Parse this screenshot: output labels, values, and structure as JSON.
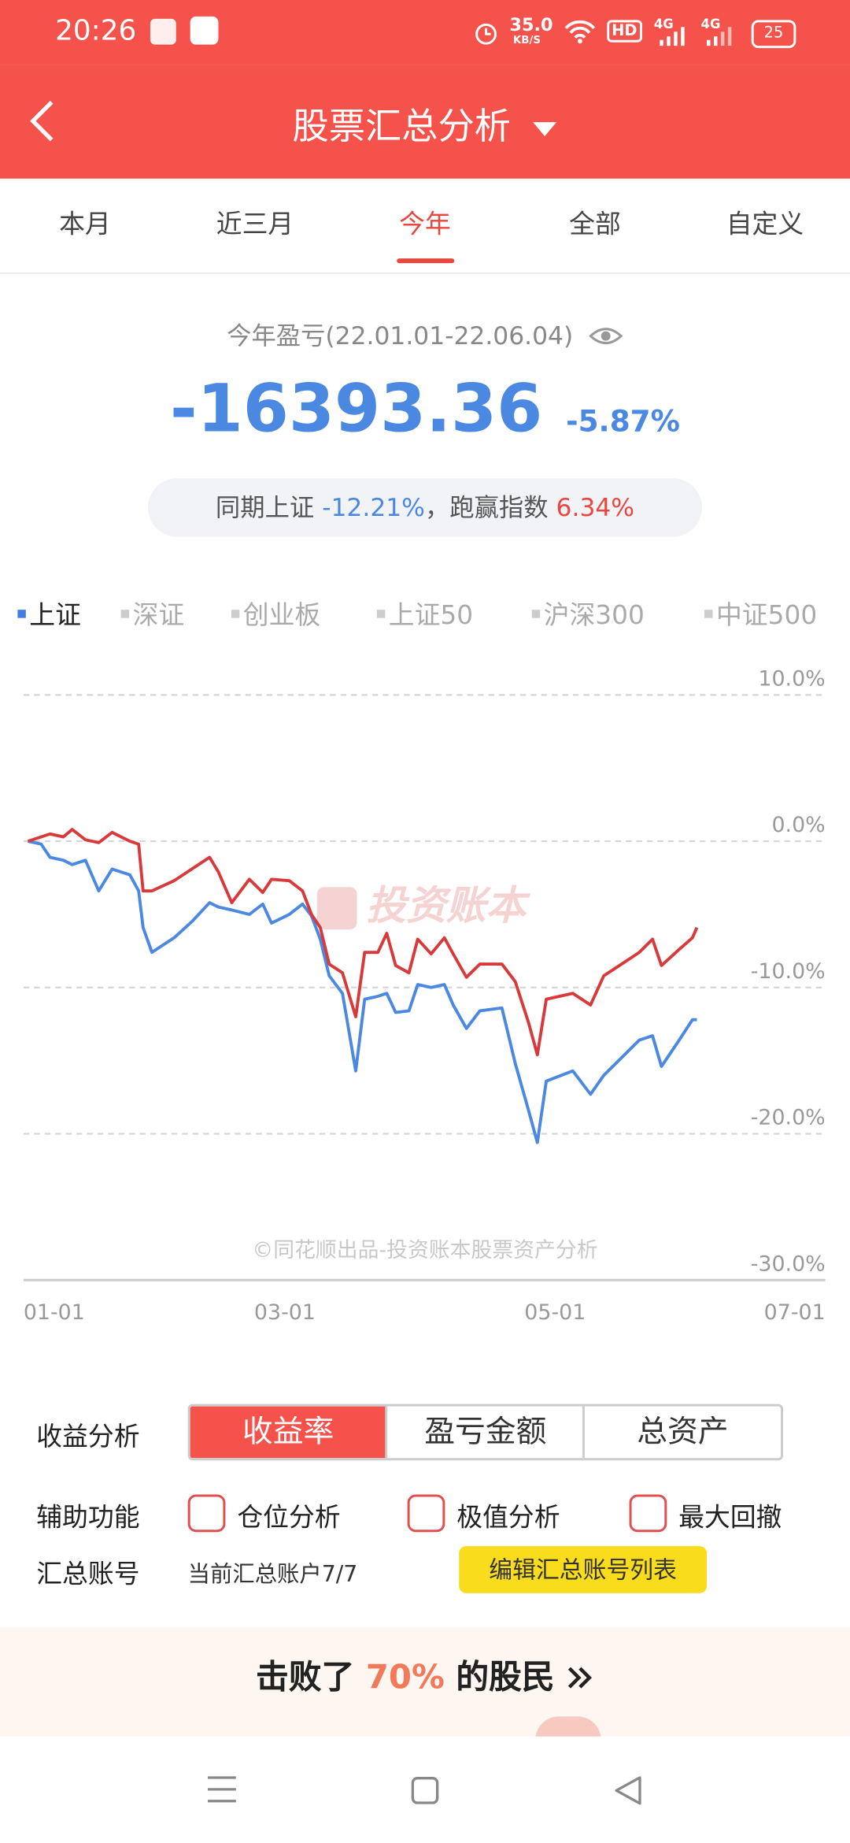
{
  "status_bar": {
    "time": "20:26",
    "network_speed": "35.0",
    "network_unit": "KB/S",
    "hd": "HD",
    "signal_labels": [
      "4G",
      "4G"
    ],
    "battery": "25"
  },
  "header": {
    "title": "股票汇总分析"
  },
  "period_tabs": {
    "items": [
      "本月",
      "近三月",
      "今年",
      "全部",
      "自定义"
    ],
    "active": 2
  },
  "summary": {
    "label": "今年盈亏(22.01.01-22.06.04)",
    "profit": "-16393.36",
    "return": "-5.87%",
    "compare_prefix": "同期上证",
    "index_return": "-12.21%",
    "compare_middle": "，跑赢指数",
    "excess_return": "6.34%"
  },
  "index_tabs": {
    "items": [
      "上证",
      "深证",
      "创业板",
      "上证50",
      "沪深300",
      "中证500"
    ],
    "active": 0
  },
  "chart_data": {
    "type": "line",
    "watermark": "投资账本",
    "footnote": "©同花顺出品-投资账本股票资产分析",
    "x": [
      "01-02",
      "01-05",
      "01-07",
      "01-10",
      "01-12",
      "01-15",
      "01-18",
      "01-21",
      "01-25",
      "01-27",
      "01-28",
      "01-30",
      "02-04",
      "02-08",
      "02-12",
      "02-14",
      "02-17",
      "02-21",
      "02-24",
      "02-26",
      "03-02",
      "03-05",
      "03-07",
      "03-09",
      "03-11",
      "03-14",
      "03-17",
      "03-19",
      "03-22",
      "03-24",
      "03-26",
      "03-29",
      "03-31",
      "04-03",
      "04-06",
      "04-08",
      "04-11",
      "04-14",
      "04-19",
      "04-22",
      "04-25",
      "04-27",
      "04-29",
      "05-05",
      "05-09",
      "05-12",
      "05-16",
      "05-20",
      "05-23",
      "05-25",
      "05-29",
      "06-01",
      "06-02"
    ],
    "series": [
      {
        "color": "#4a88e2",
        "values": [
          0.0,
          -0.2,
          -1.1,
          -1.3,
          -1.6,
          -1.3,
          -3.4,
          -1.9,
          -2.3,
          -3.4,
          -5.9,
          -7.6,
          -6.6,
          -5.5,
          -4.2,
          -4.5,
          -4.7,
          -5.0,
          -4.3,
          -5.6,
          -5.0,
          -4.3,
          -5.1,
          -6.7,
          -9.2,
          -10.4,
          -15.7,
          -10.8,
          -10.6,
          -10.4,
          -11.7,
          -11.6,
          -9.8,
          -10.0,
          -9.8,
          -11.2,
          -12.8,
          -11.6,
          -11.4,
          -15.2,
          -18.4,
          -20.6,
          -16.4,
          -15.7,
          -17.3,
          -16.0,
          -14.8,
          -13.6,
          -13.3,
          -15.4,
          -13.6,
          -12.2,
          -12.2
        ]
      },
      {
        "color": "#d8393a",
        "values": [
          0.0,
          0.3,
          0.5,
          0.3,
          0.8,
          0.1,
          -0.1,
          0.6,
          0.0,
          -0.2,
          -3.4,
          -3.4,
          -2.7,
          -1.9,
          -1.1,
          -2.1,
          -4.2,
          -2.6,
          -3.5,
          -2.6,
          -2.7,
          -3.4,
          -5.0,
          -5.9,
          -8.4,
          -9.0,
          -12.0,
          -7.6,
          -7.6,
          -6.3,
          -8.5,
          -9.0,
          -6.7,
          -7.7,
          -6.6,
          -7.7,
          -9.3,
          -8.4,
          -8.4,
          -9.6,
          -12.4,
          -14.6,
          -10.8,
          -10.4,
          -11.2,
          -9.2,
          -8.4,
          -7.6,
          -6.7,
          -8.5,
          -7.4,
          -6.6,
          -5.9
        ]
      }
    ],
    "xlim": [
      "01-01",
      "07-01"
    ],
    "xticks": [
      "01-01",
      "03-01",
      "05-01",
      "07-01"
    ],
    "ylim": [
      -30,
      10
    ],
    "yticks": [
      {
        "value": 10,
        "label": "10.0%"
      },
      {
        "value": 0,
        "label": "0.0%"
      },
      {
        "value": -10,
        "label": "-10.0%"
      },
      {
        "value": -20,
        "label": "-20.0%"
      },
      {
        "value": -30,
        "label": "-30.0%"
      }
    ],
    "grid": true
  },
  "controls": {
    "analysis_label": "收益分析",
    "analysis_options": [
      "收益率",
      "盈亏金额",
      "总资产"
    ],
    "analysis_active": 0,
    "aux_label": "辅助功能",
    "aux_options": [
      "仓位分析",
      "极值分析",
      "最大回撤"
    ],
    "account_label": "汇总账号",
    "account_value": "当前汇总账户7/7",
    "edit_button": "编辑汇总账号列表"
  },
  "banner": {
    "prefix": "击败了",
    "percent": "70%",
    "suffix": "的股民"
  }
}
